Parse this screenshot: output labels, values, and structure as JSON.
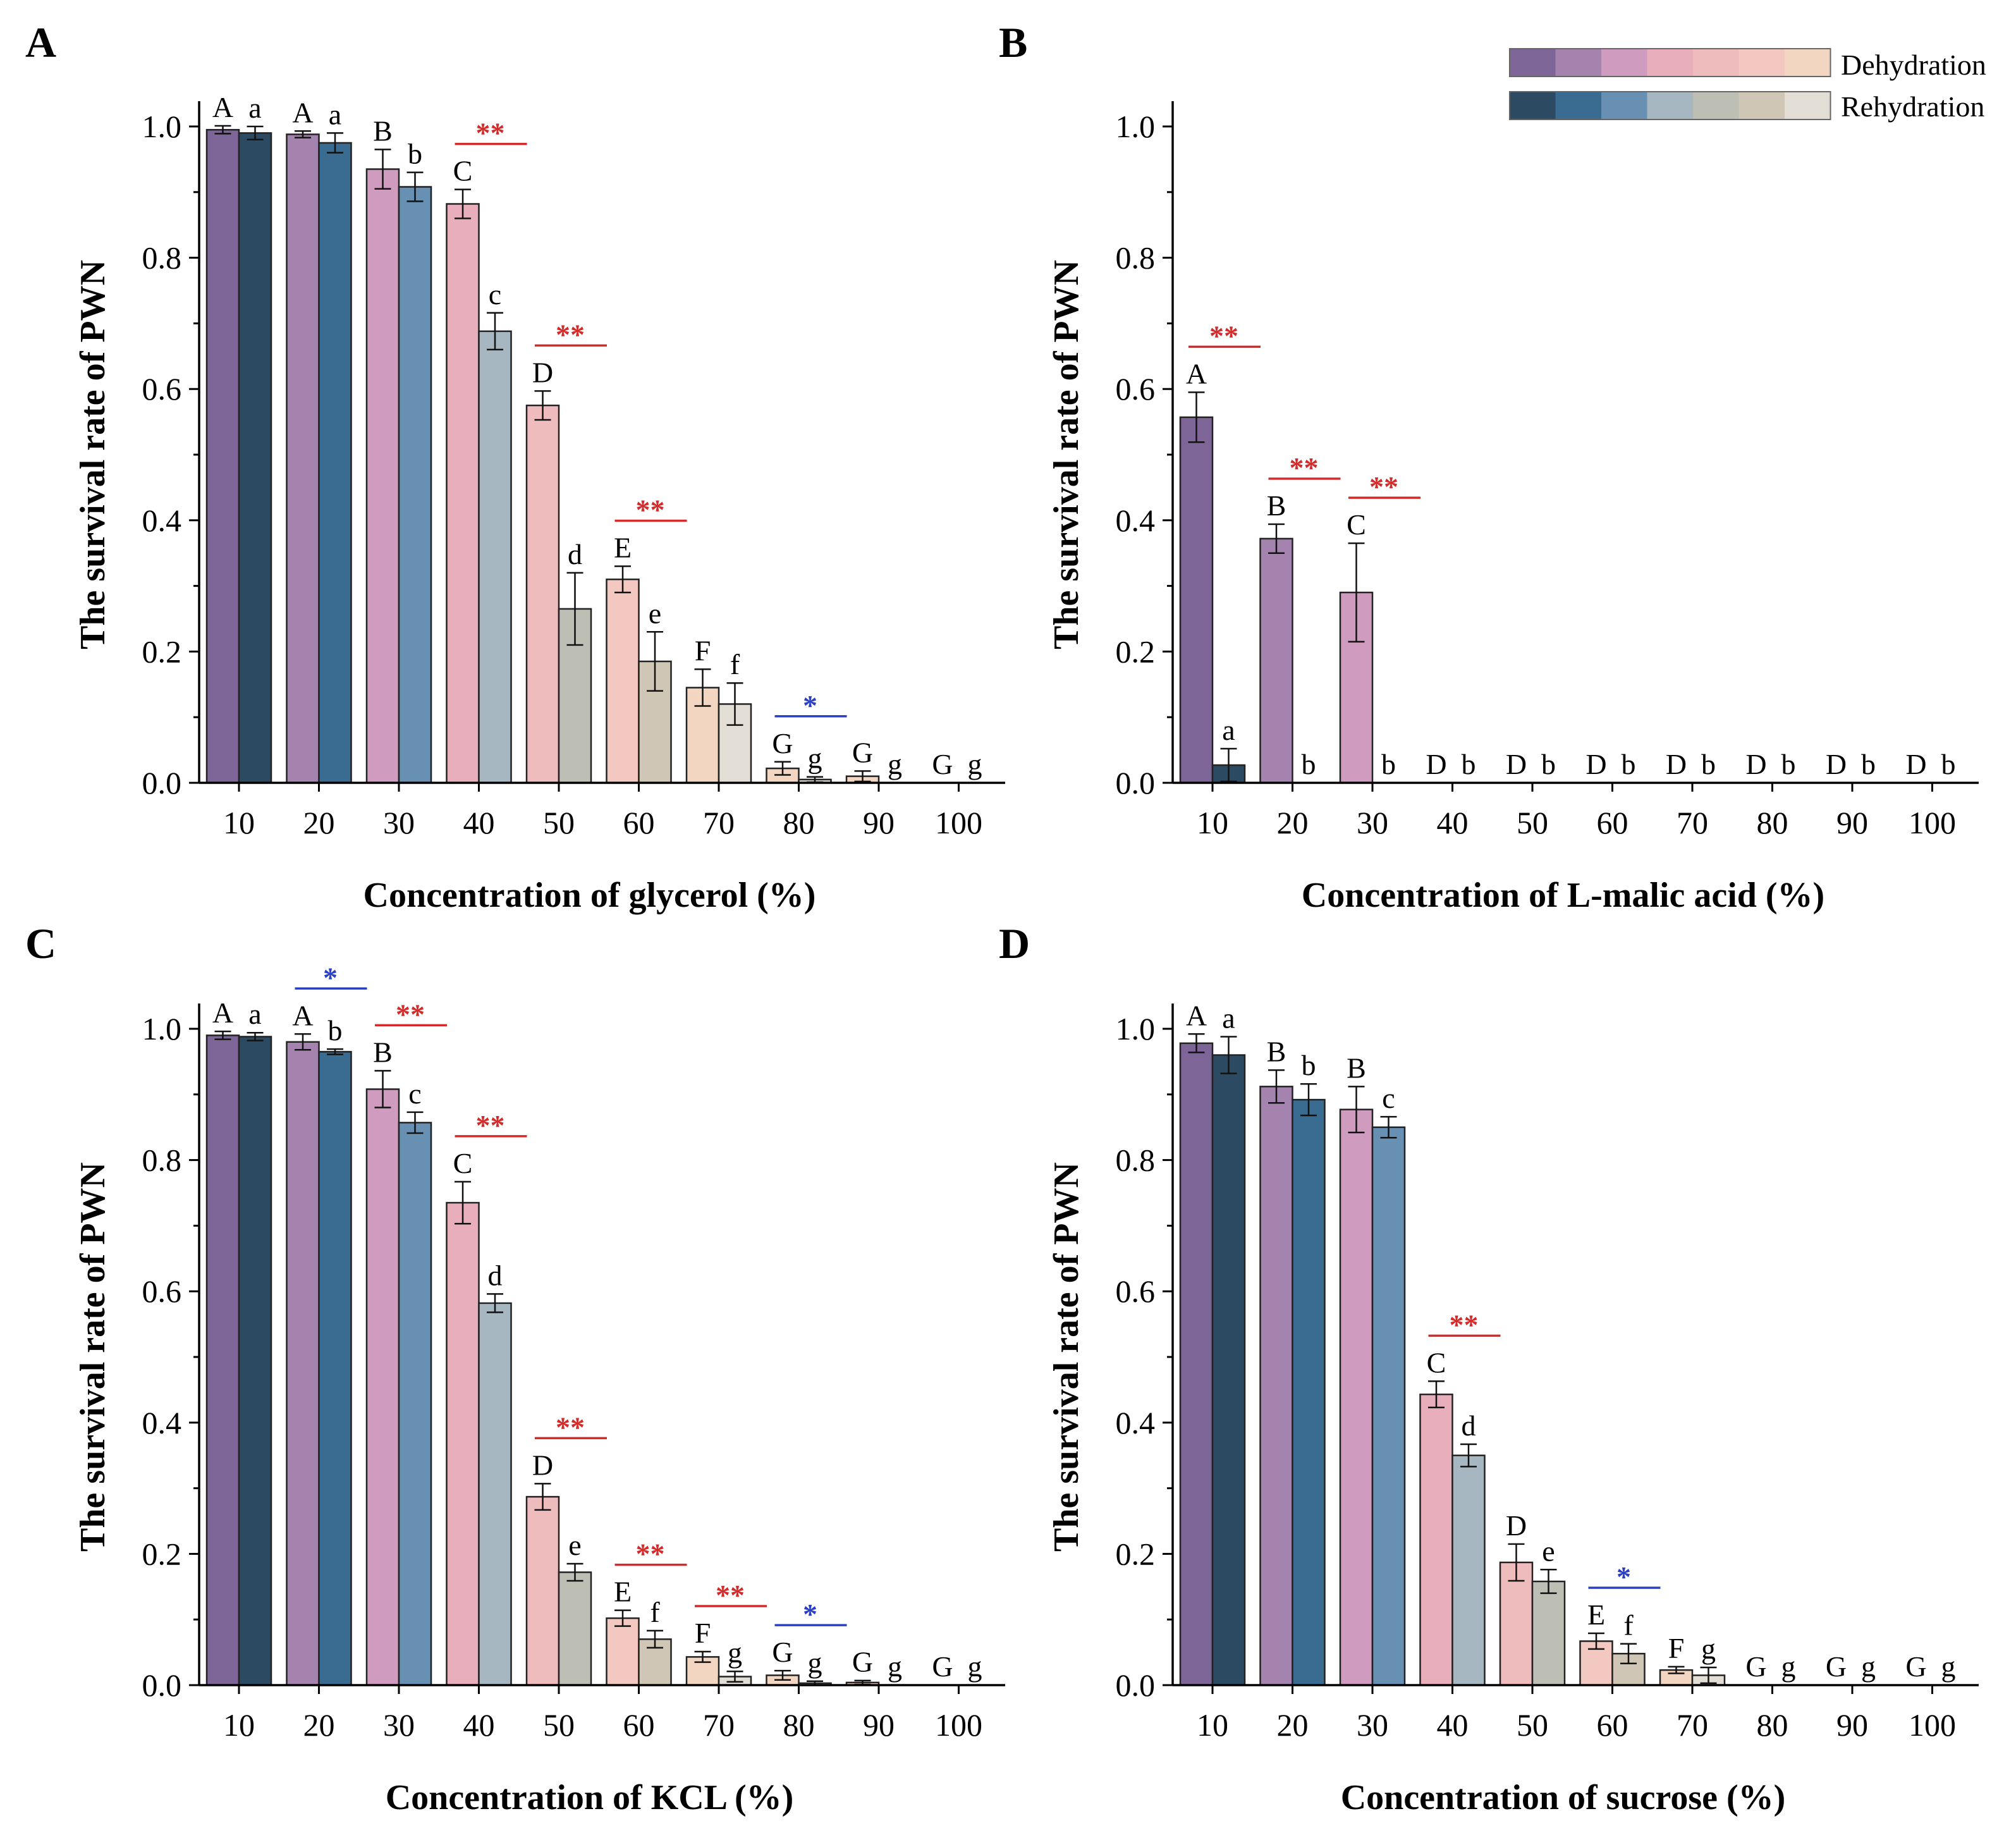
{
  "legend": {
    "dehydration_label": "Dehydration",
    "rehydration_label": "Rehydration",
    "dehydration_colors": [
      "#7d6598",
      "#a484ae",
      "#cf9bbf",
      "#e8aebb",
      "#efbcbe",
      "#f2c8c0",
      "#f3d6c1"
    ],
    "rehydration_colors": [
      "#2c4a62",
      "#3a6b91",
      "#6790b3",
      "#a7b7c1",
      "#bebfb4",
      "#cfc6b5",
      "#e3ded5"
    ]
  },
  "colors": {
    "dehydration": [
      "#7d6598",
      "#a484ae",
      "#cf9bbf",
      "#e8aebb",
      "#efbcbe",
      "#f2c8c0",
      "#f3d6c1",
      "#f3d6c1",
      "#f3d6c1",
      "#f3d6c1"
    ],
    "rehydration": [
      "#2c4a62",
      "#3a6b91",
      "#6790b3",
      "#a7b7c1",
      "#bebfb4",
      "#cfc6b5",
      "#e3ded5",
      "#e3ded5",
      "#e3ded5",
      "#e3ded5"
    ],
    "red_star": "#d42a2a",
    "blue_star": "#2a3fc4"
  },
  "chart_data": [
    {
      "panel": "A",
      "type": "bar",
      "xlabel": "Concentration of glycerol (%)",
      "ylabel": "The survival rate of PWN",
      "ylim": [
        0,
        1.0
      ],
      "yticks": [
        "0.0",
        "0.2",
        "0.4",
        "0.6",
        "0.8",
        "1.0"
      ],
      "categories": [
        "10",
        "20",
        "30",
        "40",
        "50",
        "60",
        "70",
        "80",
        "90",
        "100"
      ],
      "series": [
        {
          "name": "Dehydration",
          "values": [
            0.995,
            0.988,
            0.935,
            0.882,
            0.575,
            0.31,
            0.145,
            0.022,
            0.01,
            0
          ],
          "errors": [
            0.006,
            0.005,
            0.03,
            0.022,
            0.022,
            0.02,
            0.028,
            0.01,
            0.008,
            0
          ],
          "letters": [
            "A",
            "A",
            "B",
            "C",
            "D",
            "E",
            "F",
            "G",
            "G",
            "G"
          ]
        },
        {
          "name": "Rehydration",
          "values": [
            0.99,
            0.975,
            0.908,
            0.688,
            0.265,
            0.185,
            0.12,
            0.005,
            0,
            0
          ],
          "errors": [
            0.01,
            0.015,
            0.022,
            0.028,
            0.055,
            0.045,
            0.032,
            0.004,
            0,
            0
          ],
          "letters": [
            "a",
            "a",
            "b",
            "c",
            "d",
            "e",
            "f",
            "g",
            "g",
            "g"
          ]
        }
      ],
      "significance": [
        {
          "index": 3,
          "mark": "**",
          "color": "red"
        },
        {
          "index": 4,
          "mark": "**",
          "color": "red"
        },
        {
          "index": 5,
          "mark": "**",
          "color": "red"
        },
        {
          "index": 7,
          "mark": "*",
          "color": "blue"
        }
      ]
    },
    {
      "panel": "B",
      "type": "bar",
      "xlabel": "Concentration of L-malic acid (%)",
      "ylabel": "The survival rate of PWN",
      "ylim": [
        0,
        1.0
      ],
      "yticks": [
        "0.0",
        "0.2",
        "0.4",
        "0.6",
        "0.8",
        "1.0"
      ],
      "categories": [
        "10",
        "20",
        "30",
        "40",
        "50",
        "60",
        "70",
        "80",
        "90",
        "100"
      ],
      "series": [
        {
          "name": "Dehydration",
          "values": [
            0.557,
            0.372,
            0.29,
            0,
            0,
            0,
            0,
            0,
            0,
            0
          ],
          "errors": [
            0.038,
            0.022,
            0.075,
            0,
            0,
            0,
            0,
            0,
            0,
            0
          ],
          "letters": [
            "A",
            "B",
            "C",
            "D",
            "D",
            "D",
            "D",
            "D",
            "D",
            "D"
          ]
        },
        {
          "name": "Rehydration",
          "values": [
            0.027,
            0,
            0,
            0,
            0,
            0,
            0,
            0,
            0,
            0
          ],
          "errors": [
            0.025,
            0,
            0,
            0,
            0,
            0,
            0,
            0,
            0,
            0
          ],
          "letters": [
            "a",
            "b",
            "b",
            "b",
            "b",
            "b",
            "b",
            "b",
            "b",
            "b"
          ]
        }
      ],
      "significance": [
        {
          "index": 0,
          "mark": "**",
          "color": "red"
        },
        {
          "index": 1,
          "mark": "**",
          "color": "red"
        },
        {
          "index": 2,
          "mark": "**",
          "color": "red"
        }
      ]
    },
    {
      "panel": "C",
      "type": "bar",
      "xlabel": "Concentration of KCL (%)",
      "ylabel": "The survival rate of PWN",
      "ylim": [
        0,
        1.0
      ],
      "yticks": [
        "0.0",
        "0.2",
        "0.4",
        "0.6",
        "0.8",
        "1.0"
      ],
      "categories": [
        "10",
        "20",
        "30",
        "40",
        "50",
        "60",
        "70",
        "80",
        "90",
        "100"
      ],
      "series": [
        {
          "name": "Dehydration",
          "values": [
            0.99,
            0.98,
            0.908,
            0.735,
            0.287,
            0.102,
            0.043,
            0.015,
            0.004,
            0
          ],
          "errors": [
            0.006,
            0.012,
            0.028,
            0.032,
            0.02,
            0.012,
            0.008,
            0.007,
            0.003,
            0
          ],
          "letters": [
            "A",
            "A",
            "B",
            "C",
            "D",
            "E",
            "F",
            "G",
            "G",
            "G"
          ]
        },
        {
          "name": "Rehydration",
          "values": [
            0.988,
            0.965,
            0.857,
            0.582,
            0.172,
            0.07,
            0.013,
            0.003,
            0,
            0
          ],
          "errors": [
            0.006,
            0.004,
            0.016,
            0.014,
            0.013,
            0.013,
            0.008,
            0.003,
            0,
            0
          ],
          "letters": [
            "a",
            "b",
            "c",
            "d",
            "e",
            "f",
            "g",
            "g",
            "g",
            "g"
          ]
        }
      ],
      "significance": [
        {
          "index": 1,
          "mark": "*",
          "color": "blue"
        },
        {
          "index": 2,
          "mark": "**",
          "color": "red"
        },
        {
          "index": 3,
          "mark": "**",
          "color": "red"
        },
        {
          "index": 4,
          "mark": "**",
          "color": "red"
        },
        {
          "index": 5,
          "mark": "**",
          "color": "red"
        },
        {
          "index": 6,
          "mark": "**",
          "color": "red"
        },
        {
          "index": 7,
          "mark": "*",
          "color": "blue"
        }
      ]
    },
    {
      "panel": "D",
      "type": "bar",
      "xlabel": "Concentration of sucrose (%)",
      "ylabel": "The survival rate of PWN",
      "ylim": [
        0,
        1.0
      ],
      "yticks": [
        "0.0",
        "0.2",
        "0.4",
        "0.6",
        "0.8",
        "1.0"
      ],
      "categories": [
        "10",
        "20",
        "30",
        "40",
        "50",
        "60",
        "70",
        "80",
        "90",
        "100"
      ],
      "series": [
        {
          "name": "Dehydration",
          "values": [
            0.978,
            0.912,
            0.877,
            0.443,
            0.187,
            0.067,
            0.023,
            0,
            0,
            0
          ],
          "errors": [
            0.014,
            0.025,
            0.035,
            0.02,
            0.028,
            0.012,
            0.005,
            0,
            0,
            0
          ],
          "letters": [
            "A",
            "B",
            "B",
            "C",
            "D",
            "E",
            "F",
            "G",
            "G",
            "G"
          ]
        },
        {
          "name": "Rehydration",
          "values": [
            0.96,
            0.892,
            0.85,
            0.35,
            0.158,
            0.048,
            0.015,
            0,
            0,
            0
          ],
          "errors": [
            0.028,
            0.024,
            0.016,
            0.017,
            0.018,
            0.015,
            0.012,
            0,
            0,
            0
          ],
          "letters": [
            "a",
            "b",
            "c",
            "d",
            "e",
            "f",
            "g",
            "g",
            "g",
            "g"
          ]
        }
      ],
      "significance": [
        {
          "index": 3,
          "mark": "**",
          "color": "red"
        },
        {
          "index": 5,
          "mark": "*",
          "color": "blue"
        }
      ]
    }
  ]
}
